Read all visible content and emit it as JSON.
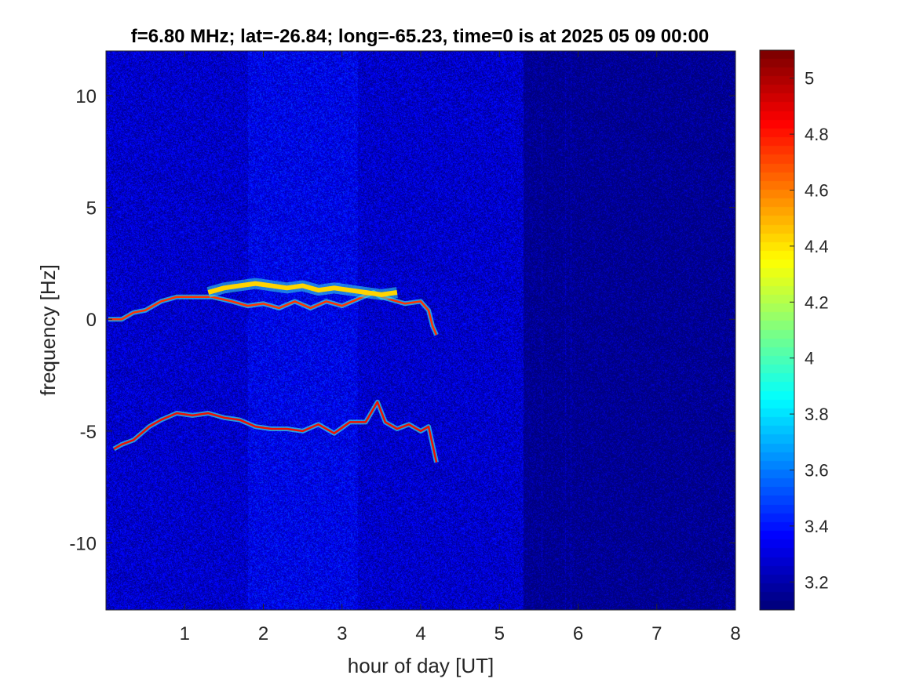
{
  "chart_data": {
    "type": "heatmap",
    "title": "f=6.80 MHz;  lat=-26.84; long=-65.23, time=0 is at 2025 05 09 00:00",
    "xlabel": "hour of day [UT]",
    "ylabel": "frequency [Hz]",
    "xlim": [
      0,
      8
    ],
    "ylim": [
      -13,
      12
    ],
    "x_ticks": [
      1,
      2,
      3,
      4,
      5,
      6,
      7,
      8
    ],
    "x_tick_labels": [
      "1",
      "2",
      "3",
      "4",
      "5",
      "6",
      "7",
      "8"
    ],
    "y_ticks": [
      10,
      5,
      0,
      -5,
      -10
    ],
    "y_tick_labels": [
      "10",
      "5",
      "0",
      "-5",
      "-10"
    ],
    "colorbar": {
      "colormap": "jet",
      "clim": [
        3.1,
        5.1
      ],
      "ticks": [
        5,
        4.8,
        4.6,
        4.4,
        4.2,
        4,
        3.8,
        3.6,
        3.4,
        3.2
      ],
      "tick_labels": [
        "5",
        "4.8",
        "4.6",
        "4.4",
        "4.2",
        "4",
        "3.8",
        "3.6",
        "3.4",
        "3.2"
      ]
    },
    "background_level": 3.25,
    "grid": false,
    "series": [
      {
        "x": [
          0.03,
          0.2,
          0.35,
          0.5,
          0.7,
          0.9,
          1.1,
          1.35,
          1.6,
          1.8,
          2.0,
          2.2,
          2.4,
          2.6,
          2.8,
          3.0,
          3.2,
          3.4,
          3.5,
          3.6,
          3.8,
          4.0,
          4.1,
          4.15,
          4.2
        ],
        "values": [
          0.0,
          0.0,
          0.3,
          0.4,
          0.8,
          1.0,
          1.0,
          1.0,
          0.8,
          0.6,
          0.7,
          0.5,
          0.8,
          0.5,
          0.8,
          0.6,
          0.9,
          1.2,
          1.0,
          0.9,
          0.7,
          0.8,
          0.4,
          -0.3,
          -0.7
        ]
      },
      {
        "x": [
          0.1,
          0.2,
          0.35,
          0.55,
          0.7,
          0.9,
          1.1,
          1.3,
          1.5,
          1.7,
          1.9,
          2.1,
          2.3,
          2.5,
          2.7,
          2.9,
          3.1,
          3.3,
          3.45,
          3.55,
          3.7,
          3.85,
          4.0,
          4.1,
          4.15,
          4.2
        ],
        "values": [
          -5.8,
          -5.6,
          -5.4,
          -4.8,
          -4.5,
          -4.2,
          -4.3,
          -4.2,
          -4.4,
          -4.5,
          -4.8,
          -4.9,
          -4.9,
          -5.0,
          -4.7,
          -5.1,
          -4.6,
          -4.6,
          -3.7,
          -4.6,
          -4.9,
          -4.7,
          -5.0,
          -4.8,
          -5.6,
          -6.4
        ]
      },
      {
        "x": [
          1.3,
          1.5,
          1.7,
          1.9,
          2.1,
          2.3,
          2.5,
          2.7,
          2.9,
          3.1,
          3.3,
          3.5,
          3.7
        ],
        "values": [
          1.2,
          1.4,
          1.5,
          1.6,
          1.5,
          1.4,
          1.5,
          1.3,
          1.4,
          1.3,
          1.2,
          1.1,
          1.2
        ]
      }
    ]
  }
}
